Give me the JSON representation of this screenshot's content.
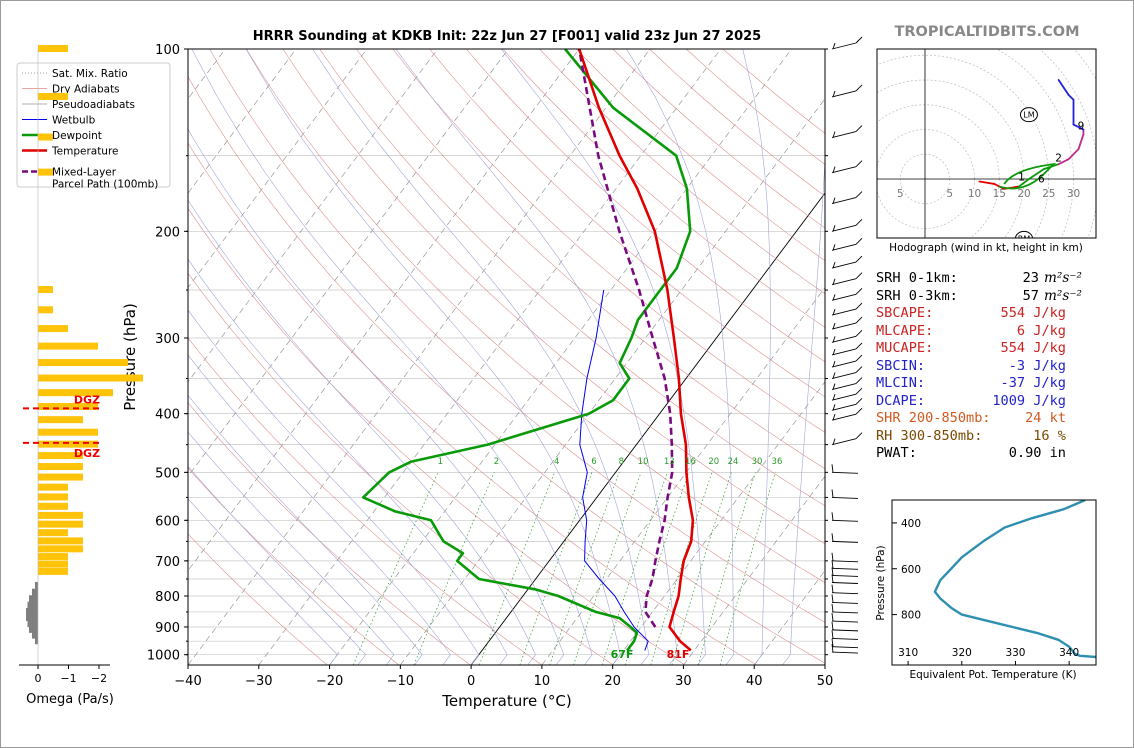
{
  "title": "HRRR Sounding at KDKB Init: 22z Jun 27 [F001] valid 23z Jun 27 2025",
  "brand": "TROPICALTIDBITS.COM",
  "colors": {
    "temperature": "#e00000",
    "dewpoint": "#089a08",
    "wetbulb": "#0000ee",
    "parcel": "#7a0a80",
    "omega_up": "#ffc30a",
    "omega_down": "#7f7f7f",
    "dgz": "#ee0000",
    "thetae": "#2e8fb0",
    "cape": "#cc2222",
    "cin": "#2222cc",
    "shr": "#d05a20",
    "rh": "#7a4a00"
  },
  "legend": {
    "items": [
      {
        "label": "Sat. Mix. Ratio",
        "style": "dotted"
      },
      {
        "label": "Dry Adiabats",
        "style": "thin-red"
      },
      {
        "label": "Pseudoadiabats",
        "style": "thin-gray"
      },
      {
        "label": "Wetbulb",
        "style": "thin-blue"
      },
      {
        "label": "Dewpoint",
        "style": "green"
      },
      {
        "label": "Temperature",
        "style": "red"
      },
      {
        "label": "Mixed-Layer",
        "label2": "Parcel Path (100mb)",
        "style": "purple-dashed"
      }
    ]
  },
  "skewt": {
    "xlabel": "Temperature (°C)",
    "ylabel": "Pressure (hPa)",
    "xlim": [
      -40,
      50
    ],
    "ylim": [
      1040,
      100
    ],
    "x_ticks": [
      "−40",
      "−30",
      "−20",
      "−10",
      "0",
      "10",
      "20",
      "30",
      "40",
      "50"
    ],
    "y_ticks": [
      "100",
      "200",
      "300",
      "400",
      "500",
      "600",
      "700",
      "800",
      "900",
      "1000"
    ],
    "mixing_ratio_labels": [
      "1",
      "2",
      "4",
      "6",
      "8",
      "10",
      "13",
      "16",
      "20",
      "24",
      "30",
      "36"
    ],
    "surface_dewpoint_label": "67F",
    "surface_temp_label": "81F"
  },
  "omega": {
    "xlabel": "Omega (Pa/s)",
    "x_ticks": [
      "0",
      "−1",
      "−2"
    ],
    "dgz_label_top": "DGZ",
    "dgz_label_bottom": "DGZ",
    "dgz_top_hpa": 392,
    "dgz_bottom_hpa": 447
  },
  "hodograph": {
    "caption": "Hodograph (wind in kt, height in km)",
    "axis_labels": [
      "5",
      "5",
      "10",
      "15",
      "20",
      "25",
      "30"
    ],
    "height_labels": [
      "1",
      "2",
      "6",
      "9"
    ],
    "lm_label": "LM",
    "rm_label": "RM"
  },
  "params": [
    {
      "label": "SRH 0-1km:",
      "value": "23",
      "unit": "m²s⁻²",
      "color": "#000000"
    },
    {
      "label": "SRH 0-3km:",
      "value": "57",
      "unit": "m²s⁻²",
      "color": "#000000"
    },
    {
      "label": "SBCAPE:",
      "value": "554 J/kg",
      "unit": "",
      "color": "#cc2222"
    },
    {
      "label": "MLCAPE:",
      "value": "6 J/kg",
      "unit": "",
      "color": "#cc2222"
    },
    {
      "label": "MUCAPE:",
      "value": "554 J/kg",
      "unit": "",
      "color": "#cc2222"
    },
    {
      "label": "SBCIN:",
      "value": "-3 J/kg",
      "unit": "",
      "color": "#2222cc"
    },
    {
      "label": "MLCIN:",
      "value": "-37 J/kg",
      "unit": "",
      "color": "#2222cc"
    },
    {
      "label": "DCAPE:",
      "value": "1009 J/kg",
      "unit": "",
      "color": "#2222cc"
    },
    {
      "label": "SHR 200-850mb:",
      "value": "24 kt",
      "unit": "",
      "color": "#d05a20"
    },
    {
      "label": "RH 300-850mb:",
      "value": "16 %",
      "unit": "",
      "color": "#7a4a00"
    },
    {
      "label": "PWAT:",
      "value": "0.90 in",
      "unit": "",
      "color": "#000000"
    }
  ],
  "thetae_panel": {
    "xlabel": "Equivalent Pot. Temperature (K)",
    "ylabel": "Pressure (hPa)",
    "x_ticks": [
      "310",
      "320",
      "330",
      "340"
    ],
    "y_ticks": [
      "400",
      "600",
      "800"
    ]
  },
  "chart_data": [
    {
      "type": "line",
      "name": "skew-t",
      "title": "HRRR Sounding at KDKB Init: 22z Jun 27 [F001] valid 23z Jun 27 2025",
      "xlabel": "Temperature (°C)",
      "ylabel": "Pressure (hPa)",
      "xlim": [
        -40,
        50
      ],
      "ylim": [
        1040,
        100
      ],
      "log_y": true,
      "series": [
        {
          "name": "Temperature",
          "points": [
            [
              984,
              29.5
            ],
            [
              950,
              27
            ],
            [
              900,
              24
            ],
            [
              850,
              23
            ],
            [
              800,
              22
            ],
            [
              750,
              20.5
            ],
            [
              700,
              19
            ],
            [
              650,
              18
            ],
            [
              600,
              16
            ],
            [
              550,
              13
            ],
            [
              500,
              10
            ],
            [
              450,
              7
            ],
            [
              400,
              3
            ],
            [
              350,
              -1
            ],
            [
              300,
              -6
            ],
            [
              250,
              -12
            ],
            [
              200,
              -20
            ],
            [
              170,
              -27
            ],
            [
              150,
              -33
            ],
            [
              125,
              -41
            ],
            [
              100,
              -50
            ]
          ]
        },
        {
          "name": "Dewpoint",
          "points": [
            [
              984,
              20.5
            ],
            [
              950,
              20.5
            ],
            [
              920,
              20
            ],
            [
              900,
              18.5
            ],
            [
              870,
              16
            ],
            [
              850,
              12
            ],
            [
              800,
              5
            ],
            [
              780,
              1
            ],
            [
              750,
              -8
            ],
            [
              700,
              -13
            ],
            [
              680,
              -13
            ],
            [
              650,
              -17
            ],
            [
              600,
              -21
            ],
            [
              580,
              -27
            ],
            [
              550,
              -33
            ],
            [
              500,
              -32
            ],
            [
              480,
              -30
            ],
            [
              450,
              -21
            ],
            [
              400,
              -10
            ],
            [
              380,
              -8
            ],
            [
              350,
              -8
            ],
            [
              330,
              -11
            ],
            [
              300,
              -12
            ],
            [
              280,
              -13
            ],
            [
              250,
              -13
            ],
            [
              230,
              -13
            ],
            [
              200,
              -15
            ],
            [
              170,
              -20
            ],
            [
              150,
              -25
            ],
            [
              125,
              -39
            ],
            [
              100,
              -52
            ]
          ]
        },
        {
          "name": "Wetbulb",
          "points": [
            [
              984,
              23
            ],
            [
              950,
              22.5
            ],
            [
              900,
              19
            ],
            [
              850,
              16
            ],
            [
              800,
              13
            ],
            [
              750,
              9
            ],
            [
              700,
              5
            ],
            [
              650,
              3
            ],
            [
              600,
              1
            ],
            [
              550,
              -2
            ],
            [
              500,
              -4
            ],
            [
              450,
              -8
            ],
            [
              400,
              -11
            ],
            [
              350,
              -14
            ],
            [
              300,
              -17
            ],
            [
              250,
              -21
            ]
          ]
        },
        {
          "name": "Mixed-Layer Parcel Path (100mb)",
          "points": [
            [
              900,
              22
            ],
            [
              850,
              19
            ],
            [
              800,
              17.5
            ],
            [
              750,
              16.5
            ],
            [
              700,
              15
            ],
            [
              650,
              13.5
            ],
            [
              600,
              12
            ],
            [
              550,
              10
            ],
            [
              500,
              8
            ],
            [
              450,
              5
            ],
            [
              400,
              1.5
            ],
            [
              350,
              -3
            ],
            [
              300,
              -9
            ],
            [
              250,
              -16
            ],
            [
              200,
              -25
            ],
            [
              150,
              -36
            ],
            [
              100,
              -50
            ]
          ]
        }
      ],
      "mixing_ratio_g_per_kg": [
        1,
        2,
        4,
        6,
        8,
        10,
        13,
        16,
        20,
        24,
        30,
        36
      ]
    },
    {
      "type": "bar",
      "name": "omega",
      "xlabel": "Omega (Pa/s)",
      "xlim": [
        0.3,
        -2.2
      ],
      "up_bars": [
        [
          100,
          -0.1
        ],
        [
          120,
          -0.1
        ],
        [
          140,
          -0.05
        ],
        [
          160,
          -0.05
        ],
        [
          250,
          -0.05
        ],
        [
          270,
          -0.05
        ],
        [
          290,
          -0.1
        ],
        [
          310,
          -0.2
        ],
        [
          330,
          -0.3
        ],
        [
          350,
          -0.35
        ],
        [
          370,
          -0.25
        ],
        [
          390,
          -0.2
        ],
        [
          410,
          -0.15
        ],
        [
          430,
          -0.2
        ],
        [
          450,
          -0.2
        ],
        [
          470,
          -0.15
        ],
        [
          490,
          -0.15
        ],
        [
          510,
          -0.15
        ],
        [
          530,
          -0.1
        ],
        [
          550,
          -0.1
        ],
        [
          570,
          -0.1
        ],
        [
          590,
          -0.15
        ],
        [
          610,
          -0.15
        ],
        [
          630,
          -0.1
        ],
        [
          650,
          -0.15
        ],
        [
          670,
          -0.15
        ],
        [
          690,
          -0.1
        ],
        [
          710,
          -0.1
        ],
        [
          730,
          -0.1
        ]
      ],
      "down_bars": [
        [
          770,
          0.1
        ],
        [
          790,
          0.2
        ],
        [
          810,
          0.3
        ],
        [
          830,
          0.35
        ],
        [
          850,
          0.4
        ],
        [
          870,
          0.4
        ],
        [
          890,
          0.35
        ],
        [
          910,
          0.3
        ],
        [
          930,
          0.2
        ],
        [
          950,
          0.1
        ]
      ],
      "dgz_hpa": [
        392,
        447
      ]
    },
    {
      "type": "line",
      "name": "hodograph",
      "xlabel": "",
      "ylabel": "",
      "xlim": [
        -10,
        35
      ],
      "ylim": [
        -12,
        27
      ],
      "rings_kt": [
        5,
        10,
        15,
        20,
        25,
        30,
        35,
        40
      ],
      "hodo_points": [
        [
          11,
          -0.5
        ],
        [
          14,
          -1
        ],
        [
          16,
          -2
        ],
        [
          19,
          -1.5
        ],
        [
          21,
          0
        ],
        [
          24,
          2
        ],
        [
          27,
          3
        ],
        [
          29,
          4
        ],
        [
          31,
          6
        ],
        [
          32,
          9
        ],
        [
          32,
          10
        ],
        [
          30,
          11
        ],
        [
          30,
          16
        ],
        [
          29,
          17
        ],
        [
          27,
          20
        ]
      ],
      "storm_motion": {
        "LM": [
          21,
          13
        ],
        "RM": [
          20,
          -12
        ]
      }
    },
    {
      "type": "line",
      "name": "theta-e",
      "xlabel": "Equivalent Pot. Temperature (K)",
      "ylabel": "Pressure (hPa)",
      "xlim": [
        307,
        345
      ],
      "ylim": [
        1020,
        300
      ],
      "points": [
        [
          300,
          343
        ],
        [
          340,
          339
        ],
        [
          380,
          333
        ],
        [
          420,
          328
        ],
        [
          480,
          324
        ],
        [
          550,
          320
        ],
        [
          600,
          318
        ],
        [
          650,
          316
        ],
        [
          700,
          315
        ],
        [
          730,
          316
        ],
        [
          770,
          318
        ],
        [
          800,
          320
        ],
        [
          840,
          327
        ],
        [
          880,
          334
        ],
        [
          910,
          338
        ],
        [
          940,
          340
        ],
        [
          970,
          341
        ],
        [
          980,
          342
        ],
        [
          985,
          345
        ]
      ]
    }
  ]
}
